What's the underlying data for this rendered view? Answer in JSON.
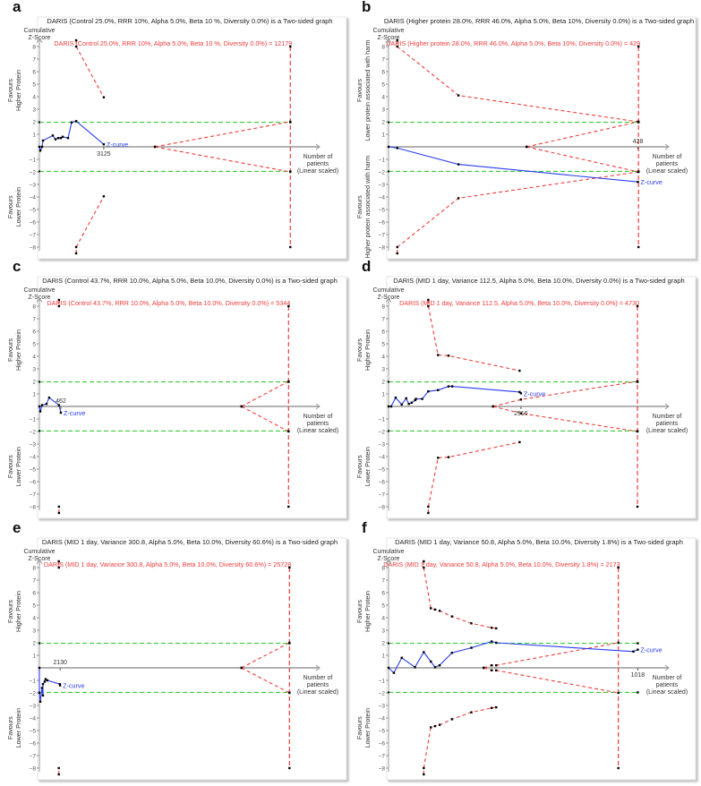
{
  "chart_data": [
    {
      "type": "line",
      "letter": "a",
      "title": "DARIS (Control 25.0%, RRR 10%, Alpha 5.0%, Beta 10 %, Diversity 0.0%) is a Two-sided graph",
      "ris_label": "DARIS (Control 25.0%, RRR 10%, Alpha 5.0%, Beta 10 %, Diversity 0.0%) = 12179",
      "ylabel": "Cumulative Z-Score",
      "upper_label": [
        "Favours",
        "Higher Protein"
      ],
      "lower_label": [
        "Favours",
        "Lower Protein"
      ],
      "xlabel": [
        "Number of",
        "patients",
        "(Linear scaled)"
      ],
      "zcurve_label": "Z-curve",
      "current_label": "3125",
      "xmax": 13600,
      "ris": 12179,
      "green_end": 12179,
      "yticks": [
        -8,
        -7,
        -6,
        -5,
        -4,
        -3,
        -2,
        -1,
        1,
        2,
        3,
        4,
        5,
        6,
        7,
        8
      ],
      "zcurve": [
        [
          0,
          0
        ],
        [
          45,
          -0.3
        ],
        [
          130,
          0
        ],
        [
          175,
          0.5
        ],
        [
          650,
          0.9
        ],
        [
          780,
          0.6
        ],
        [
          915,
          0.7
        ],
        [
          1045,
          0.7
        ],
        [
          1130,
          0.8
        ],
        [
          1390,
          0.7
        ],
        [
          1565,
          1.95
        ],
        [
          1785,
          2.05
        ],
        [
          3125,
          0.2
        ]
      ],
      "upper_boundary": [
        [
          1785,
          8.5
        ],
        [
          1785,
          8
        ],
        [
          3125,
          3.95
        ]
      ],
      "futility": [
        [
          5610,
          0
        ],
        [
          12179,
          2
        ]
      ]
    },
    {
      "type": "line",
      "letter": "b",
      "title": "DARIS (Higher protein 28.0%, RRR 46.0%, Alpha 5.0%, Beta 10%, Diversity 0.0%) is a Two-sided graph",
      "ris_label": "DARIS (Higher protein 28.0%, RRR 46.0%, Alpha 5.0%, Beta 10%, Diversity 0.0%) = 429",
      "ylabel": "Cumulative Z-Score",
      "upper_label": [
        "Favours",
        "Lower protein associated with harm"
      ],
      "lower_label": [
        "Favours",
        "Higher protein associated with harm"
      ],
      "xlabel": [
        "Number of",
        "patients",
        "(Linear scaled)"
      ],
      "zcurve_label": "Z-curve",
      "current_label": "428",
      "xmax": 481,
      "ris": 429,
      "green_end": 429,
      "yticks": [
        -8,
        -7,
        -6,
        -5,
        -4,
        -3,
        -2,
        -1,
        1,
        2,
        3,
        4,
        5,
        6,
        7,
        8
      ],
      "zcurve": [
        [
          0,
          0
        ],
        [
          15,
          -0.1
        ],
        [
          120,
          -1.4
        ],
        [
          428,
          -2.8
        ]
      ],
      "upper_boundary": [
        [
          15,
          8.5
        ],
        [
          15,
          8
        ],
        [
          120,
          4.1
        ],
        [
          428,
          2.0
        ]
      ],
      "futility": [
        [
          237,
          0
        ],
        [
          429,
          2
        ]
      ]
    },
    {
      "type": "line",
      "letter": "c",
      "title": "DARIS (Control 43.7%, RRR 10.0%, Alpha 5.0%, Beta 10.0%, Diversity 0.0%) is a Two-sided graph",
      "ris_label": "DARIS (Control 43.7%, RRR 10.0%, Alpha 5.0%, Beta 10.0%, Diversity 0.0%) = 5344",
      "ylabel": "Cumulative Z-Score",
      "upper_label": [
        "Favours",
        "Higher Protein"
      ],
      "lower_label": [
        "Favours",
        "Lower Protein"
      ],
      "xlabel": [
        "Number of",
        "patients",
        "(Linear scaled)"
      ],
      "zcurve_label": "Z-curve",
      "current_label": "462",
      "xmax": 6010,
      "ris": 5344,
      "green_end": 5344,
      "yticks": [
        -8,
        -7,
        -6,
        -5,
        -4,
        -3,
        -2,
        -1,
        1,
        2,
        3,
        4,
        5,
        6,
        7,
        8
      ],
      "zcurve": [
        [
          0,
          0
        ],
        [
          19,
          -0.4
        ],
        [
          57,
          0.1
        ],
        [
          153,
          0.2
        ],
        [
          210,
          0.7
        ],
        [
          420,
          0.1
        ],
        [
          460,
          -0.5
        ]
      ],
      "upper_boundary": [
        [
          420,
          8.5
        ],
        [
          420,
          8
        ]
      ],
      "futility": [
        [
          4335,
          0
        ],
        [
          5344,
          2
        ]
      ]
    },
    {
      "type": "line",
      "letter": "d",
      "title": "DARIS (MID 1 day, Variance 112.5, Alpha 5.0%, Beta 10.0%, Diversity 0.0%) is a Two-sided graph",
      "ris_label": "DARIS (MID 1 day, Variance 112.5, Alpha 5.0%, Beta 10.0%, Diversity 0.0%) = 4730",
      "ylabel": "Cumulative Z-Score",
      "upper_label": [
        "Favours",
        "Higher Protein"
      ],
      "lower_label": [
        "Favours",
        "Lower Protein"
      ],
      "xlabel": [
        "Number of",
        "patients",
        "(Linear scaled)"
      ],
      "zcurve_label": "Z-curve",
      "current_label": "2516",
      "xmax": 5325,
      "ris": 4730,
      "green_end": 4730,
      "yticks": [
        -8,
        -7,
        -6,
        -5,
        -4,
        -3,
        -2,
        -1,
        1,
        2,
        3,
        4,
        5,
        6,
        7,
        8
      ],
      "zcurve": [
        [
          0,
          0
        ],
        [
          50,
          0
        ],
        [
          135,
          0.7
        ],
        [
          250,
          0.15
        ],
        [
          335,
          0.65
        ],
        [
          385,
          0.2
        ],
        [
          440,
          0.3
        ],
        [
          505,
          0.5
        ],
        [
          520,
          0.6
        ],
        [
          640,
          0.6
        ],
        [
          755,
          1.2
        ],
        [
          940,
          1.3
        ],
        [
          1140,
          1.6
        ],
        [
          1210,
          1.6
        ],
        [
          2490,
          1.15
        ],
        [
          2516,
          1.05
        ]
      ],
      "upper_boundary": [
        [
          755,
          8.5
        ],
        [
          755,
          8
        ],
        [
          940,
          4.1
        ],
        [
          1140,
          4.05
        ],
        [
          2490,
          2.85
        ]
      ],
      "futility": [
        [
          1985,
          0
        ],
        [
          2516,
          0.55
        ],
        [
          4730,
          2
        ]
      ]
    },
    {
      "type": "line",
      "letter": "e",
      "title": "DARIS (MID 1 day, Variance 300.8, Alpha 5.0%, Beta 10.0%, Diversity 60.6%) is a Two-sided graph",
      "ris_label": "DARIS (MID 1 day, Variance 300.8, Alpha 5.0%, Beta 10.0%, Diversity 60.6%) = 25728",
      "ylabel": "Cumulative Z-Score",
      "upper_label": [
        "Favours",
        "Higher Protein"
      ],
      "lower_label": [
        "Favours",
        "Lower Protein"
      ],
      "xlabel": [
        "Number of",
        "patients",
        "(Linear scaled)"
      ],
      "zcurve_label": "Z-curve",
      "current_label": "2130",
      "xmax": 28830,
      "ris": 25728,
      "green_end": 25728,
      "yticks": [
        -8,
        -7,
        -6,
        -5,
        -4,
        -3,
        -2,
        -1,
        1,
        2,
        3,
        4,
        5,
        6,
        7,
        8
      ],
      "zcurve": [
        [
          0,
          0
        ],
        [
          0,
          -2
        ],
        [
          91,
          -2.7
        ],
        [
          270,
          -1.6
        ],
        [
          365,
          -2.2
        ],
        [
          365,
          -1.3
        ],
        [
          550,
          -1.1
        ],
        [
          640,
          -0.9
        ],
        [
          820,
          -1.0
        ],
        [
          2100,
          -1.3
        ],
        [
          2130,
          -1.4
        ]
      ],
      "upper_boundary": [
        [
          2000,
          8.5
        ],
        [
          2000,
          8
        ]
      ],
      "futility": [
        [
          20790,
          0
        ],
        [
          25728,
          2
        ]
      ]
    },
    {
      "type": "line",
      "letter": "f",
      "title": "DARIS (MID 1 day, Variance 50.8, Alpha 5.0%, Beta 10.0%, Diversity 1.8%) is a Two-sided graph",
      "ris_label": "DARIS (MID 1 day, Variance 50.8, Alpha 5.0%, Beta 10.0%, Diversity 1.8%) = 2173",
      "ylabel": "Cumulative Z-Score",
      "upper_label": [
        "Favours",
        "Higher Protein"
      ],
      "lower_label": [
        "Favours",
        "Lower Protein"
      ],
      "xlabel": [
        "Number of",
        "patients",
        "(Linear scaled)"
      ],
      "zcurve_label": "Z-curve",
      "current_label": "1018",
      "xmax": 2650,
      "ris": 2173,
      "green_end": 2357,
      "yticks": [
        -8,
        -7,
        -6,
        -5,
        -4,
        -3,
        -2,
        -1,
        1,
        2,
        3,
        4,
        5,
        6,
        7,
        8
      ],
      "zcurve": [
        [
          0,
          0
        ],
        [
          50,
          -0.4
        ],
        [
          125,
          0.8
        ],
        [
          250,
          0.05
        ],
        [
          333,
          1.25
        ],
        [
          400,
          0.5
        ],
        [
          440,
          0.05
        ],
        [
          483,
          0.2
        ],
        [
          600,
          1.2
        ],
        [
          783,
          1.6
        ],
        [
          975,
          2.1
        ],
        [
          1018,
          2.0
        ],
        [
          2315,
          1.3
        ],
        [
          2357,
          1.45
        ]
      ],
      "upper_boundary": [
        [
          333,
          8.5
        ],
        [
          333,
          8
        ],
        [
          400,
          4.75
        ],
        [
          440,
          4.65
        ],
        [
          483,
          4.55
        ],
        [
          600,
          4.1
        ],
        [
          783,
          3.55
        ],
        [
          975,
          3.2
        ],
        [
          1018,
          3.15
        ]
      ],
      "futility": [
        [
          900,
          0
        ],
        [
          975,
          0.2
        ],
        [
          1018,
          0.2
        ],
        [
          2173,
          2
        ]
      ]
    }
  ],
  "colors": {
    "zcurve": "#2a3cf0",
    "boundary": "#f03c3c",
    "conventional": "#38cc38",
    "axis": "#999999",
    "text": "#333333"
  }
}
